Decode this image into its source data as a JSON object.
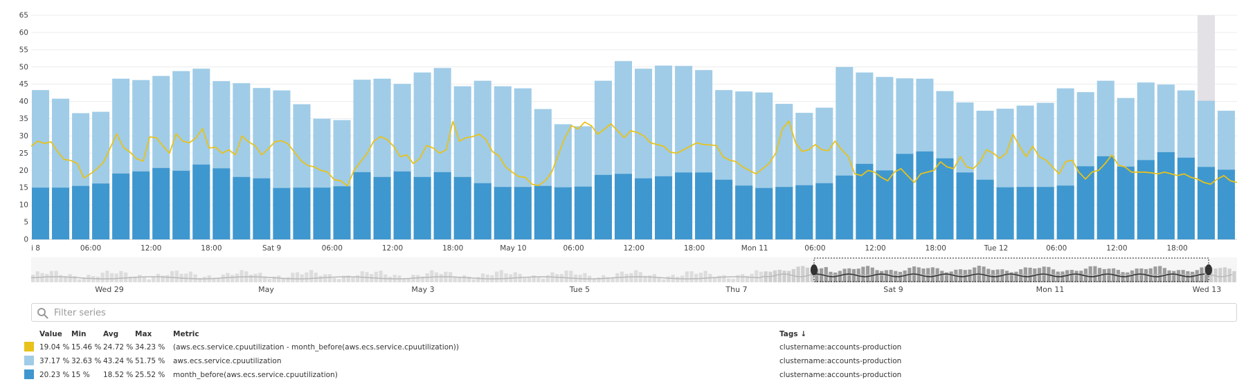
{
  "chart_data": {
    "type": "bar",
    "ylim": [
      0,
      65
    ],
    "yticks": [
      "0",
      "5",
      "10",
      "15",
      "20",
      "25",
      "30",
      "35",
      "40",
      "45",
      "50",
      "55",
      "60",
      "65"
    ],
    "xtick_labels": [
      "i 8",
      "06:00",
      "12:00",
      "18:00",
      "Sat 9",
      "06:00",
      "12:00",
      "18:00",
      "May 10",
      "06:00",
      "12:00",
      "18:00",
      "Mon 11",
      "06:00",
      "12:00",
      "18:00",
      "Tue 12",
      "06:00",
      "12:00",
      "18:00"
    ],
    "series": [
      {
        "name": "aws.ecs.service.cpuutilization",
        "color": "#a0cce7",
        "values": [
          43.3,
          40.8,
          36.6,
          37.0,
          46.6,
          46.2,
          47.4,
          48.8,
          49.5,
          45.9,
          45.3,
          43.9,
          43.2,
          39.2,
          35.0,
          34.6,
          46.3,
          46.6,
          45.1,
          48.4,
          49.7,
          44.4,
          46.0,
          44.4,
          43.8,
          37.8,
          33.4,
          32.8,
          46.0,
          51.7,
          49.5,
          50.4,
          50.3,
          49.1,
          43.3,
          42.9,
          42.6,
          39.3,
          36.7,
          38.2,
          50.0,
          48.4,
          47.1,
          46.7,
          46.6,
          43.0,
          39.7,
          37.3,
          37.9,
          38.8,
          39.6,
          43.8,
          42.7,
          46.0,
          41.0,
          45.5,
          44.9,
          43.2,
          40.2,
          37.3
        ]
      },
      {
        "name": "month_before(aws.ecs.service.cpuutilization)",
        "color": "#3f97cf",
        "values": [
          15.0,
          15.0,
          15.5,
          16.2,
          19.1,
          19.7,
          20.7,
          19.9,
          21.7,
          20.6,
          18.1,
          17.7,
          14.9,
          15.0,
          15.0,
          15.4,
          19.5,
          18.1,
          19.7,
          18.1,
          19.5,
          18.1,
          16.3,
          15.2,
          15.2,
          15.5,
          15.1,
          15.3,
          18.7,
          19.0,
          17.7,
          18.3,
          19.4,
          19.4,
          17.3,
          15.6,
          14.9,
          15.2,
          15.7,
          16.3,
          18.5,
          21.9,
          20.0,
          24.8,
          25.5,
          23.5,
          19.4,
          17.3,
          15.1,
          15.2,
          15.2,
          15.6,
          21.2,
          24.1,
          21.1,
          23.0,
          25.3,
          23.7,
          21.0,
          20.2
        ]
      },
      {
        "name": "(aws.ecs.service.cpuutilization - month_before(aws.ecs.service.cpuutilization))",
        "color": "#e8c21b",
        "values": [
          27.0,
          28.5,
          27.8,
          28.3,
          25.5,
          23.2,
          22.9,
          22.0,
          17.8,
          19.0,
          20.5,
          22.4,
          26.5,
          30.6,
          26.7,
          25.3,
          23.4,
          22.7,
          29.7,
          29.5,
          27.1,
          25.0,
          30.6,
          28.5,
          28.0,
          29.4,
          32.1,
          26.5,
          26.7,
          25.0,
          26.0,
          24.5,
          30.0,
          28.3,
          27.1,
          24.5,
          26.3,
          28.3,
          28.6,
          27.7,
          25.2,
          22.8,
          21.4,
          21.0,
          20.0,
          19.5,
          17.3,
          17.0,
          15.5,
          20.0,
          22.5,
          25.0,
          28.5,
          29.8,
          29.0,
          27.0,
          24.0,
          24.5,
          22.0,
          23.5,
          27.2,
          26.5,
          25.0,
          26.0,
          34.2,
          28.5,
          29.5,
          29.8,
          30.5,
          29.0,
          25.5,
          24.2,
          21.0,
          19.5,
          18.2,
          18.0,
          16.0,
          15.6,
          17.0,
          19.5,
          24.5,
          29.5,
          33.0,
          32.0,
          34.0,
          33.0,
          30.5,
          32.0,
          33.5,
          31.5,
          29.5,
          31.5,
          31.0,
          30.0,
          28.0,
          27.5,
          27.0,
          25.3,
          25.0,
          26.0,
          27.0,
          28.0,
          27.5,
          27.4,
          27.2,
          24.0,
          23.0,
          22.5,
          21.0,
          20.0,
          19.0,
          20.5,
          22.0,
          25.0,
          32.0,
          34.3,
          28.0,
          25.5,
          26.0,
          27.5,
          26.0,
          25.7,
          28.5,
          26.0,
          24.0,
          19.0,
          18.5,
          20.0,
          19.5,
          18.0,
          17.0,
          19.5,
          20.5,
          18.5,
          16.5,
          19.0,
          19.5,
          20.0,
          22.5,
          21.0,
          20.5,
          24.0,
          21.0,
          20.5,
          22.5,
          26.0,
          25.0,
          23.5,
          25.0,
          30.5,
          27.0,
          24.0,
          27.0,
          24.0,
          23.0,
          21.0,
          19.0,
          22.5,
          23.0,
          19.5,
          17.5,
          19.5,
          20.0,
          22.0,
          24.5,
          21.5,
          21.0,
          19.5,
          19.5,
          19.5,
          19.3,
          19.0,
          19.5,
          19.0,
          18.5,
          19.0,
          18.0,
          17.5,
          16.5,
          16.0,
          17.5,
          18.5,
          17.0,
          16.5
        ]
      }
    ]
  },
  "navigator": {
    "date_labels": [
      "Wed 29",
      "May",
      "May 3",
      "Tue 5",
      "Thu 7",
      "Sat 9",
      "Mon 11",
      "Wed 13"
    ]
  },
  "filter": {
    "placeholder": "Filter series"
  },
  "legend": {
    "headers": {
      "value": "Value",
      "min": "Min",
      "avg": "Avg",
      "max": "Max",
      "metric": "Metric",
      "tags": "Tags ↓"
    },
    "rows": [
      {
        "color": "#e8c21b",
        "value": "19.04 %",
        "min": "15.46 %",
        "avg": "24.72 %",
        "max": "34.23 %",
        "metric": "(aws.ecs.service.cpuutilization - month_before(aws.ecs.service.cpuutilization))",
        "tags": "clustername:accounts-production"
      },
      {
        "color": "#a0cce7",
        "value": "37.17 %",
        "min": "32.63 %",
        "avg": "43.24 %",
        "max": "51.75 %",
        "metric": "aws.ecs.service.cpuutilization",
        "tags": "clustername:accounts-production"
      },
      {
        "color": "#3f97cf",
        "value": "20.23 %",
        "min": "15 %",
        "avg": "18.52 %",
        "max": "25.52 %",
        "metric": "month_before(aws.ecs.service.cpuutilization)",
        "tags": "clustername:accounts-production"
      }
    ]
  }
}
